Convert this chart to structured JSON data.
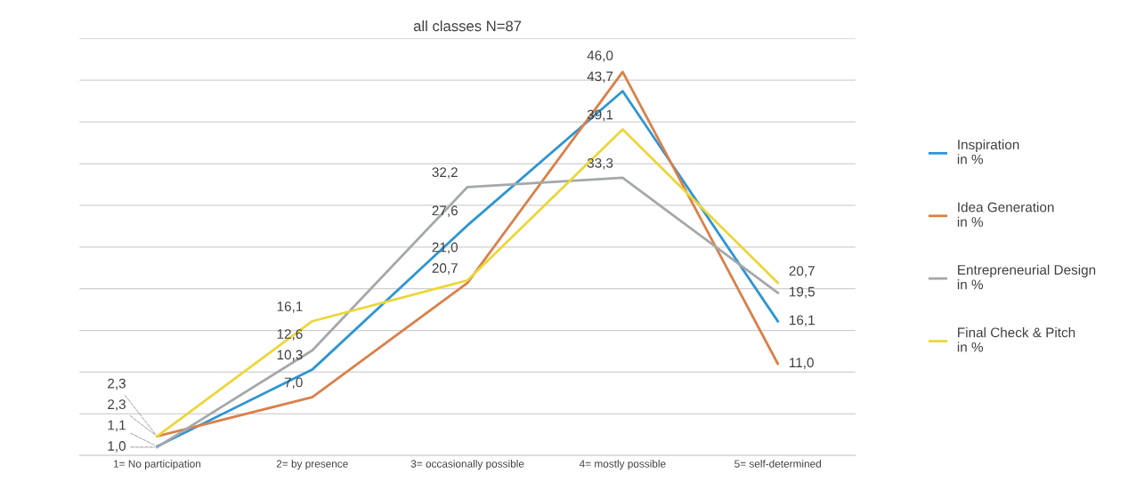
{
  "chart_data": {
    "type": "line",
    "title": "all classes N=87",
    "categories": [
      "1= No participation",
      "2= by presence",
      "3= occasionally possible",
      "4= mostly possible",
      "5= self-determined"
    ],
    "series": [
      {
        "name": "Inspiration\nin %",
        "color": "#2e95d3",
        "values": [
          1.1,
          10.3,
          27.6,
          43.7,
          16.1
        ],
        "value_labels": [
          "1,1",
          "10,3",
          "27,6",
          "43,7",
          "16,1"
        ]
      },
      {
        "name": "Idea Generation\nin %",
        "color": "#d9804a",
        "values": [
          2.3,
          7.0,
          20.7,
          46.0,
          11.0
        ],
        "value_labels": [
          "2,3",
          "7,0",
          "20,7",
          "46,0",
          "11,0"
        ]
      },
      {
        "name": "Entrepreneurial Design\nin %",
        "color": "#a5a8aa",
        "values": [
          1.0,
          12.6,
          32.2,
          33.3,
          19.5
        ],
        "value_labels": [
          "1,0",
          "12,6",
          "32,2",
          "33,3",
          "19,5"
        ]
      },
      {
        "name": "Final Check & Pitch\nin %",
        "color": "#ecd63a",
        "values": [
          2.3,
          16.1,
          21.0,
          39.1,
          20.7
        ],
        "value_labels": [
          "2,3",
          "16,1",
          "21,0",
          "39,1",
          "20,7"
        ]
      }
    ],
    "ylim": [
      0,
      50
    ],
    "yticks": [
      {
        "value": 0,
        "label": null
      },
      {
        "value": 5,
        "label": null
      },
      {
        "value": 10,
        "label": null
      },
      {
        "value": 15,
        "label": null
      },
      {
        "value": 20,
        "label": null
      },
      {
        "value": 25,
        "label": null
      },
      {
        "value": 30,
        "label": null
      },
      {
        "value": 35,
        "label": null
      },
      {
        "value": 40,
        "label": null
      },
      {
        "value": 45,
        "label": null
      },
      {
        "value": 50,
        "label": null
      }
    ],
    "grid": "y",
    "legend": "right",
    "marker": "none",
    "line_style": "solid",
    "tick_labels": "x"
  }
}
